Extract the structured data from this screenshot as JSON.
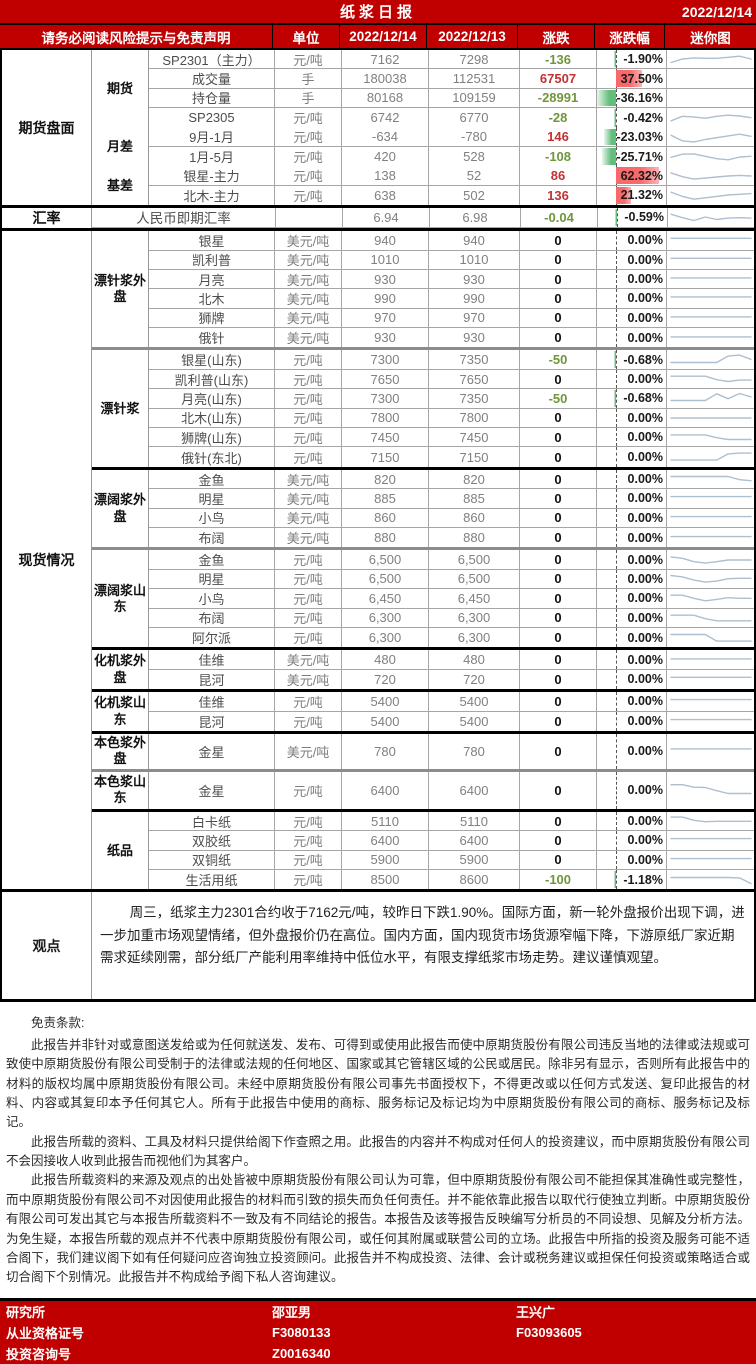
{
  "title": {
    "text": "纸浆日报",
    "date": "2022/12/14"
  },
  "header": {
    "cols": [
      "请务必阅读风险提示与免责声明",
      "单位",
      "2022/12/14",
      "2022/12/13",
      "涨跌",
      "涨跌幅",
      "迷你图"
    ]
  },
  "colors": {
    "brand_red": "#c00000",
    "positive": "#c23232",
    "negative": "#70963c",
    "bar_red": "#f8696b",
    "bar_green": "#63be7b",
    "sparkline": "#aebfd0"
  },
  "bar_scale": {
    "min_pct": -36.16,
    "max_pct": 62.32
  },
  "table": {
    "sections": [
      {
        "label": "期货盘面",
        "groups": [
          {
            "label": "期货",
            "rows": [
              {
                "name": "SP2301（主力）",
                "unit": "元/吨",
                "v1": "7162",
                "v2": "7298",
                "chg": "-136",
                "pct": "-1.90%",
                "spark": [
                  75,
                  50,
                  42,
                  45,
                  45,
                  38,
                  30,
                  50
                ]
              },
              {
                "name": "成交量",
                "unit": "手",
                "v1": "180038",
                "v2": "112531",
                "chg": "67507",
                "pct": "37.50%",
                "spark": null
              },
              {
                "name": "持仓量",
                "unit": "手",
                "v1": "80168",
                "v2": "109159",
                "chg": "-28991",
                "pct": "-36.16%",
                "spark": null
              },
              {
                "name": "SP2305",
                "unit": "元/吨",
                "v1": "6742",
                "v2": "6770",
                "chg": "-28",
                "pct": "-0.42%",
                "spark": [
                  70,
                  38,
                  42,
                  52,
                  38,
                  30,
                  36,
                  48
                ]
              }
            ]
          },
          {
            "label": "月差",
            "rows": [
              {
                "name": "9月-1月",
                "unit": "元/吨",
                "v1": "-634",
                "v2": "-780",
                "chg": "146",
                "pct": "-23.03%",
                "spark": [
                  38,
                  78,
                  85,
                  68,
                  55,
                  42,
                  30,
                  45
                ]
              },
              {
                "name": "1月-5月",
                "unit": "元/吨",
                "v1": "420",
                "v2": "528",
                "chg": "-108",
                "pct": "-25.71%",
                "spark": [
                  52,
                  30,
                  28,
                  45,
                  62,
                  70,
                  50,
                  45
                ]
              }
            ]
          },
          {
            "label": "基差",
            "rows": [
              {
                "name": "银星-主力",
                "unit": "元/吨",
                "v1": "138",
                "v2": "52",
                "chg": "86",
                "pct": "62.32%",
                "spark": [
                  28,
                  55,
                  72,
                  65,
                  57,
                  50,
                  46,
                  50
                ]
              },
              {
                "name": "北木-主力",
                "unit": "元/吨",
                "v1": "638",
                "v2": "502",
                "chg": "136",
                "pct": "21.32%",
                "spark": [
                  30,
                  60,
                  80,
                  70,
                  60,
                  50,
                  45,
                  40
                ]
              }
            ]
          }
        ]
      },
      {
        "label": "汇率",
        "merged_row": {
          "name": "人民币即期汇率",
          "unit": "",
          "v1": "6.94",
          "v2": "6.98",
          "chg": "-0.04",
          "pct": "-0.59%",
          "spark": [
            30,
            55,
            75,
            50,
            68,
            58,
            55,
            58
          ]
        }
      },
      {
        "label": "现货情况",
        "groups": [
          {
            "label": "漂针浆外盘",
            "rows": [
              {
                "name": "银星",
                "unit": "美元/吨",
                "v1": "940",
                "v2": "940",
                "chg": "0",
                "pct": "0.00%",
                "spark": [
                  38,
                  38
                ]
              },
              {
                "name": "凯利普",
                "unit": "美元/吨",
                "v1": "1010",
                "v2": "1010",
                "chg": "0",
                "pct": "0.00%",
                "spark": [
                  38,
                  38
                ]
              },
              {
                "name": "月亮",
                "unit": "美元/吨",
                "v1": "930",
                "v2": "930",
                "chg": "0",
                "pct": "0.00%",
                "spark": [
                  42,
                  42
                ]
              },
              {
                "name": "北木",
                "unit": "美元/吨",
                "v1": "990",
                "v2": "990",
                "chg": "0",
                "pct": "0.00%",
                "spark": [
                  42,
                  42
                ]
              },
              {
                "name": "狮牌",
                "unit": "美元/吨",
                "v1": "970",
                "v2": "970",
                "chg": "0",
                "pct": "0.00%",
                "spark": [
                  42,
                  42
                ]
              },
              {
                "name": "俄针",
                "unit": "美元/吨",
                "v1": "930",
                "v2": "930",
                "chg": "0",
                "pct": "0.00%",
                "spark": [
                  42,
                  42
                ]
              }
            ]
          },
          {
            "label": "漂针浆",
            "sep": "gray",
            "rows": [
              {
                "name": "银星(山东)",
                "unit": "元/吨",
                "v1": "7300",
                "v2": "7350",
                "chg": "-50",
                "pct": "-0.68%",
                "spark": [
                  68,
                  68,
                  68,
                  68,
                  68,
                  22,
                  15,
                  45
                ]
              },
              {
                "name": "凯利普(山东)",
                "unit": "元/吨",
                "v1": "7650",
                "v2": "7650",
                "chg": "0",
                "pct": "0.00%",
                "spark": [
                  30,
                  30,
                  30,
                  30,
                  55,
                  68,
                  58,
                  58
                ]
              },
              {
                "name": "月亮(山东)",
                "unit": "元/吨",
                "v1": "7300",
                "v2": "7350",
                "chg": "-50",
                "pct": "-0.68%",
                "spark": [
                  68,
                  68,
                  68,
                  68,
                  20,
                  55,
                  18,
                  42
                ]
              },
              {
                "name": "北木(山东)",
                "unit": "元/吨",
                "v1": "7800",
                "v2": "7800",
                "chg": "0",
                "pct": "0.00%",
                "spark": [
                  50,
                  50
                ]
              },
              {
                "name": "狮牌(山东)",
                "unit": "元/吨",
                "v1": "7450",
                "v2": "7450",
                "chg": "0",
                "pct": "0.00%",
                "spark": [
                  35,
                  35,
                  35,
                  35,
                  55,
                  68,
                  68,
                  68
                ]
              },
              {
                "name": "俄针(东北)",
                "unit": "元/吨",
                "v1": "7150",
                "v2": "7150",
                "chg": "0",
                "pct": "0.00%",
                "spark": [
                  72,
                  72,
                  72,
                  72,
                  72,
                  28,
                  22,
                  22
                ]
              }
            ]
          },
          {
            "label": "漂阔浆外盘",
            "sep": "black",
            "rows": [
              {
                "name": "金鱼",
                "unit": "美元/吨",
                "v1": "820",
                "v2": "820",
                "chg": "0",
                "pct": "0.00%",
                "spark": [
                  32,
                  32,
                  32,
                  32,
                  32,
                  32,
                  55,
                  62
                ]
              },
              {
                "name": "明星",
                "unit": "美元/吨",
                "v1": "885",
                "v2": "885",
                "chg": "0",
                "pct": "0.00%",
                "spark": [
                  40,
                  40
                ]
              },
              {
                "name": "小鸟",
                "unit": "美元/吨",
                "v1": "860",
                "v2": "860",
                "chg": "0",
                "pct": "0.00%",
                "spark": [
                  40,
                  40
                ]
              },
              {
                "name": "布阔",
                "unit": "美元/吨",
                "v1": "880",
                "v2": "880",
                "chg": "0",
                "pct": "0.00%",
                "spark": [
                  40,
                  40
                ]
              }
            ]
          },
          {
            "label": "漂阔浆山东",
            "sep": "gray",
            "rows": [
              {
                "name": "金鱼",
                "unit": "元/吨",
                "v1": "6,500",
                "v2": "6,500",
                "chg": "0",
                "pct": "0.00%",
                "spark": [
                  28,
                  38,
                  62,
                  72,
                  62,
                  50,
                  50,
                  50
                ]
              },
              {
                "name": "明星",
                "unit": "元/吨",
                "v1": "6,500",
                "v2": "6,500",
                "chg": "0",
                "pct": "0.00%",
                "spark": [
                  25,
                  35,
                  58,
                  72,
                  65,
                  48,
                  45,
                  45
                ]
              },
              {
                "name": "小鸟",
                "unit": "元/吨",
                "v1": "6,450",
                "v2": "6,450",
                "chg": "0",
                "pct": "0.00%",
                "spark": [
                  30,
                  30,
                  52,
                  70,
                  60,
                  48,
                  52,
                  52
                ]
              },
              {
                "name": "布阔",
                "unit": "元/吨",
                "v1": "6,300",
                "v2": "6,300",
                "chg": "0",
                "pct": "0.00%",
                "spark": [
                  30,
                  30,
                  30,
                  55,
                  70,
                  70,
                  70,
                  70
                ]
              },
              {
                "name": "阿尔派",
                "unit": "元/吨",
                "v1": "6,300",
                "v2": "6,300",
                "chg": "0",
                "pct": "0.00%",
                "spark": [
                  25,
                  25,
                  25,
                  25,
                  72,
                  72,
                  72,
                  72
                ]
              }
            ]
          },
          {
            "label": "化机浆外盘",
            "sep": "black",
            "rows": [
              {
                "name": "佳维",
                "unit": "美元/吨",
                "v1": "480",
                "v2": "480",
                "chg": "0",
                "pct": "0.00%",
                "spark": [
                  42,
                  42
                ]
              },
              {
                "name": "昆河",
                "unit": "美元/吨",
                "v1": "720",
                "v2": "720",
                "chg": "0",
                "pct": "0.00%",
                "spark": [
                  38,
                  38
                ]
              }
            ]
          },
          {
            "label": "化机浆山东",
            "sep": "black",
            "rows": [
              {
                "name": "佳维",
                "unit": "元/吨",
                "v1": "5400",
                "v2": "5400",
                "chg": "0",
                "pct": "0.00%",
                "spark": [
                  40,
                  40
                ]
              },
              {
                "name": "昆河",
                "unit": "元/吨",
                "v1": "5400",
                "v2": "5400",
                "chg": "0",
                "pct": "0.00%",
                "spark": [
                  40,
                  40
                ]
              }
            ]
          },
          {
            "label": "本色浆外盘",
            "sep": "black",
            "rows": [
              {
                "name": "金星",
                "unit": "美元/吨",
                "v1": "780",
                "v2": "780",
                "chg": "0",
                "pct": "0.00%",
                "h": 35,
                "spark": [
                  35,
                  35
                ]
              }
            ]
          },
          {
            "label": "本色浆山东",
            "sep": "gray",
            "rows": [
              {
                "name": "金星",
                "unit": "元/吨",
                "v1": "6400",
                "v2": "6400",
                "chg": "0",
                "pct": "0.00%",
                "h": 37,
                "spark": [
                  12,
                  12,
                  30,
                  32,
                  55,
                  75,
                  75,
                  75
                ]
              }
            ]
          },
          {
            "label": "纸品",
            "sep": "black",
            "rows": [
              {
                "name": "白卡纸",
                "unit": "元/吨",
                "v1": "5110",
                "v2": "5110",
                "chg": "0",
                "pct": "0.00%",
                "spark": [
                  22,
                  22,
                  45,
                  55,
                  52,
                  52,
                  52,
                  52
                ]
              },
              {
                "name": "双胶纸",
                "unit": "元/吨",
                "v1": "6400",
                "v2": "6400",
                "chg": "0",
                "pct": "0.00%",
                "spark": [
                  40,
                  40
                ]
              },
              {
                "name": "双铜纸",
                "unit": "元/吨",
                "v1": "5900",
                "v2": "5900",
                "chg": "0",
                "pct": "0.00%",
                "spark": [
                  40,
                  40
                ]
              },
              {
                "name": "生活用纸",
                "unit": "元/吨",
                "v1": "8500",
                "v2": "8600",
                "chg": "-100",
                "pct": "-1.18%",
                "spark": [
                  32,
                  32,
                  32,
                  32,
                  32,
                  32,
                  35,
                  75
                ]
              }
            ]
          }
        ]
      }
    ]
  },
  "opinion": {
    "label": "观点",
    "text": "周三，纸浆主力2301合约收于7162元/吨，较昨日下跌1.90%。国际方面，新一轮外盘报价出现下调，进一步加重市场观望情绪，但外盘报价仍在高位。国内方面，国内现货市场货源窄幅下降，下游原纸厂家近期需求延续刚需，部分纸厂产能利用率维持中低位水平，有限支撑纸浆市场走势。建议谨慎观望。"
  },
  "disclaimer": {
    "heading": "免责条款:",
    "paragraphs": [
      "此报告并非针对或意图送发给或为任何就送发、发布、可得到或使用此报告而使中原期货股份有限公司违反当地的法律或法规或可致使中原期货股份有限公司受制于的法律或法规的任何地区、国家或其它管辖区域的公民或居民。除非另有显示，否则所有此报告中的材料的版权均属中原期货股份有限公司。未经中原期货股份有限公司事先书面授权下，不得更改或以任何方式发送、复印此报告的材料、内容或其复印本予任何其它人。所有于此报告中使用的商标、服务标记及标记均为中原期货股份有限公司的商标、服务标记及标记。",
      "此报告所载的资料、工具及材料只提供给阁下作查照之用。此报告的内容并不构成对任何人的投资建议，而中原期货股份有限公司不会因接收人收到此报告而视他们为其客户。",
      "此报告所载资料的来源及观点的出处皆被中原期货股份有限公司认为可靠，但中原期货股份有限公司不能担保其准确性或完整性，而中原期货股份有限公司不对因使用此报告的材料而引致的损失而负任何责任。并不能依靠此报告以取代行使独立判断。中原期货股份有限公司可发出其它与本报告所载资料不一致及有不同结论的报告。本报告及该等报告反映编写分析员的不同设想、见解及分析方法。为免生疑，本报告所载的观点并不代表中原期货股份有限公司，或任何其附属或联营公司的立场。此报告中所指的投资及服务可能不适合阁下，我们建议阁下如有任何疑问应咨询独立投资顾问。此报告并不构成投资、法律、会计或税务建议或担保任何投资或策略适合或切合阁下个别情况。此报告并不构成给予阁下私人咨询建议。"
    ]
  },
  "footer": {
    "rows": [
      [
        "研究所",
        "邵亚男",
        "王兴广"
      ],
      [
        "从业资格证号",
        "F3080133",
        "F03093605"
      ],
      [
        "投资咨询号",
        "Z0016340",
        ""
      ]
    ]
  }
}
